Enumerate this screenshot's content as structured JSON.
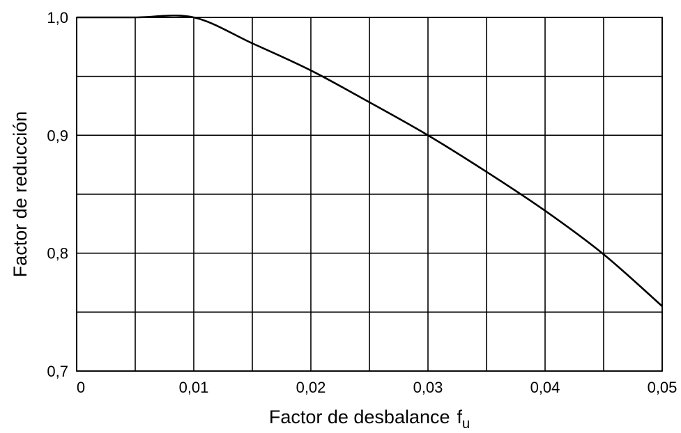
{
  "chart_data": {
    "type": "line",
    "xlabel": "Factor de desbalance",
    "xlabel_symbol": "f",
    "xlabel_subscript": "u",
    "ylabel": "Factor de reducción",
    "xlim": [
      0,
      0.05
    ],
    "ylim": [
      0.7,
      1.0
    ],
    "x_gridlines": [
      0,
      0.005,
      0.01,
      0.015,
      0.02,
      0.025,
      0.03,
      0.035,
      0.04,
      0.045,
      0.05
    ],
    "y_gridlines": [
      0.7,
      0.75,
      0.8,
      0.85,
      0.9,
      0.95,
      1.0
    ],
    "x_ticks": [
      {
        "value": 0,
        "label": "0"
      },
      {
        "value": 0.01,
        "label": "0,01"
      },
      {
        "value": 0.02,
        "label": "0,02"
      },
      {
        "value": 0.03,
        "label": "0,03"
      },
      {
        "value": 0.04,
        "label": "0,04"
      },
      {
        "value": 0.05,
        "label": "0,05"
      }
    ],
    "y_ticks": [
      {
        "value": 0.7,
        "label": "0,7"
      },
      {
        "value": 0.8,
        "label": "0,8"
      },
      {
        "value": 0.9,
        "label": "0,9"
      },
      {
        "value": 1.0,
        "label": "1,0"
      }
    ],
    "grid": true,
    "series": [
      {
        "x": [
          0,
          0.005,
          0.01,
          0.015,
          0.02,
          0.025,
          0.03,
          0.035,
          0.04,
          0.045,
          0.05
        ],
        "y": [
          1.0,
          1.0,
          1.0,
          0.978,
          0.955,
          0.928,
          0.9,
          0.869,
          0.836,
          0.799,
          0.755
        ]
      }
    ],
    "color": "#000000"
  }
}
